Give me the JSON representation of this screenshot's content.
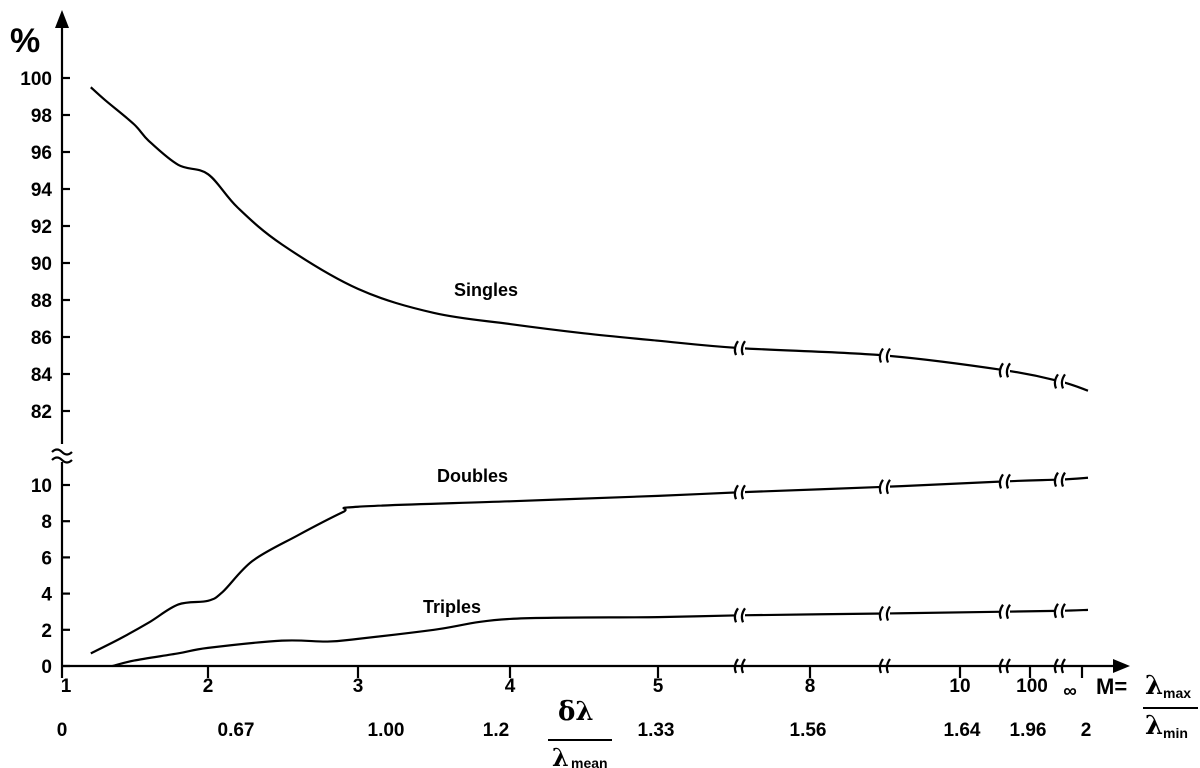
{
  "chart_data": {
    "type": "line",
    "title": "",
    "ylabel": "%",
    "y_axis_break": true,
    "y_ticks_upper": [
      "100",
      "98",
      "96",
      "94",
      "92",
      "90",
      "88",
      "86",
      "84",
      "82"
    ],
    "y_ticks_lower": [
      "10",
      "8",
      "6",
      "4",
      "2",
      "0"
    ],
    "x_axis_break": true,
    "x_ticks_m": [
      "1",
      "2",
      "3",
      "4",
      "5",
      "8",
      "10",
      "100",
      "∞"
    ],
    "x_ticks_dl": [
      "0",
      "0.67",
      "1.00",
      "1.2",
      "1.33",
      "1.56",
      "1.64",
      "1.96",
      "2"
    ],
    "x_label_m": {
      "prefix": "M=",
      "numerator": "λ",
      "numerator_sub": "max",
      "denominator": "λ",
      "denominator_sub": "min"
    },
    "x_label_dl": {
      "numerator": "δλ",
      "denominator": "λ",
      "denominator_sub": "mean"
    },
    "series": [
      {
        "name": "Singles",
        "points": [
          [
            "1.2",
            99.5
          ],
          [
            "1.3",
            98.8
          ],
          [
            "1.5",
            97.5
          ],
          [
            "1.6",
            96.6
          ],
          [
            "1.8",
            95.3
          ],
          [
            "2",
            94.8
          ],
          [
            "2.2",
            93.0
          ],
          [
            "2.5",
            91.0
          ],
          [
            "3",
            88.6
          ],
          [
            "3.5",
            87.3
          ],
          [
            "4",
            86.7
          ],
          [
            "4.5",
            86.2
          ],
          [
            "5",
            85.8
          ],
          [
            "6",
            85.4
          ],
          [
            "8",
            85.0
          ],
          [
            "10",
            84.2
          ],
          [
            "100",
            83.6
          ],
          [
            "∞",
            83.1
          ]
        ]
      },
      {
        "name": "Doubles",
        "points": [
          [
            "1.2",
            0.7
          ],
          [
            "1.4",
            1.5
          ],
          [
            "1.6",
            2.4
          ],
          [
            "1.8",
            3.4
          ],
          [
            "2",
            3.6
          ],
          [
            "2.1",
            4.1
          ],
          [
            "2.3",
            5.8
          ],
          [
            "2.6",
            7.2
          ],
          [
            "2.9",
            8.5
          ],
          [
            "3",
            8.8
          ],
          [
            "4",
            9.1
          ],
          [
            "5",
            9.4
          ],
          [
            "6",
            9.6
          ],
          [
            "8",
            9.9
          ],
          [
            "10",
            10.2
          ],
          [
            "100",
            10.3
          ],
          [
            "∞",
            10.4
          ]
        ]
      },
      {
        "name": "Triples",
        "points": [
          [
            "1.35",
            0
          ],
          [
            "1.5",
            0.3
          ],
          [
            "1.8",
            0.7
          ],
          [
            "2",
            1.0
          ],
          [
            "2.5",
            1.4
          ],
          [
            "2.8",
            1.35
          ],
          [
            "3",
            1.5
          ],
          [
            "3.5",
            2.0
          ],
          [
            "4",
            2.6
          ],
          [
            "5",
            2.7
          ],
          [
            "6",
            2.8
          ],
          [
            "8",
            2.9
          ],
          [
            "10",
            3.0
          ],
          [
            "100",
            3.05
          ],
          [
            "∞",
            3.1
          ]
        ]
      }
    ]
  }
}
